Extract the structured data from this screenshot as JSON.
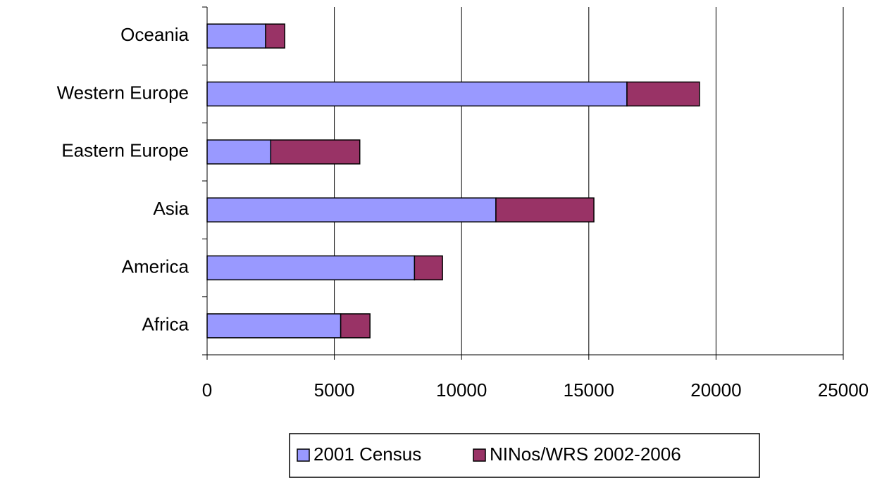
{
  "chart_data": {
    "type": "stacked_barh",
    "categories": [
      "Africa",
      "America",
      "Asia",
      "Eastern Europe",
      "Western Europe",
      "Oceania"
    ],
    "series": [
      {
        "name": "2001 Census",
        "color": "#9999ff",
        "values": [
          5250,
          8150,
          11350,
          2500,
          16500,
          2300
        ]
      },
      {
        "name": "NINos/WRS 2002-2006",
        "color": "#993366",
        "values": [
          1150,
          1100,
          3850,
          3500,
          2850,
          750
        ]
      }
    ],
    "xlim": [
      0,
      25000
    ],
    "xticks": [
      0,
      5000,
      10000,
      15000,
      20000,
      25000
    ],
    "grid": true,
    "legend": "bottom"
  }
}
